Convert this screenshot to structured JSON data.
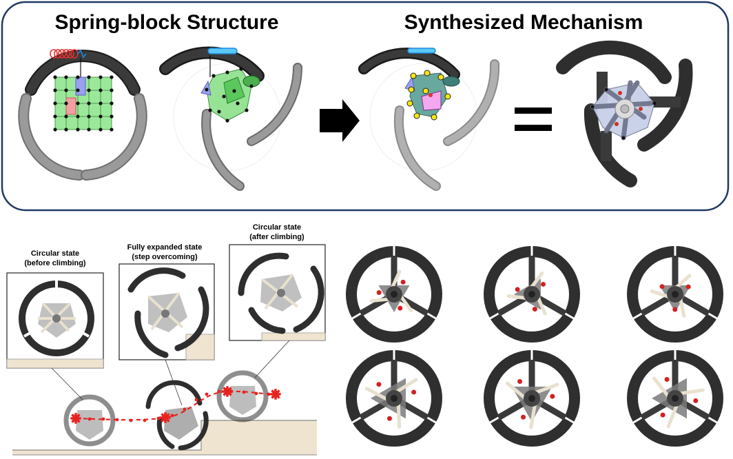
{
  "top_panel": {
    "left_title": "Spring-block Structure",
    "right_title": "Synthesized Mechanism",
    "equals": "="
  },
  "stages": [
    {
      "line1": "Circular state",
      "line2": "(before climbing)"
    },
    {
      "line1": "Fully expanded state",
      "line2": "(step overcoming)"
    },
    {
      "line1": "Circular state",
      "line2": "(after climbing)"
    }
  ],
  "colors": {
    "panel_border": "#1f3864",
    "rim_dark": "#333333",
    "rim_gray": "#8a8a8a",
    "spring_block_green": "#7ee07e",
    "spring_red": "#e53030",
    "spring_blue": "#38a8f0",
    "trajectory_red": "#e8231f",
    "ground_beige": "#efe4d0",
    "linkage_beige": "#e9e1cf"
  },
  "icons": [
    "right-arrow-icon",
    "equals-sign"
  ]
}
